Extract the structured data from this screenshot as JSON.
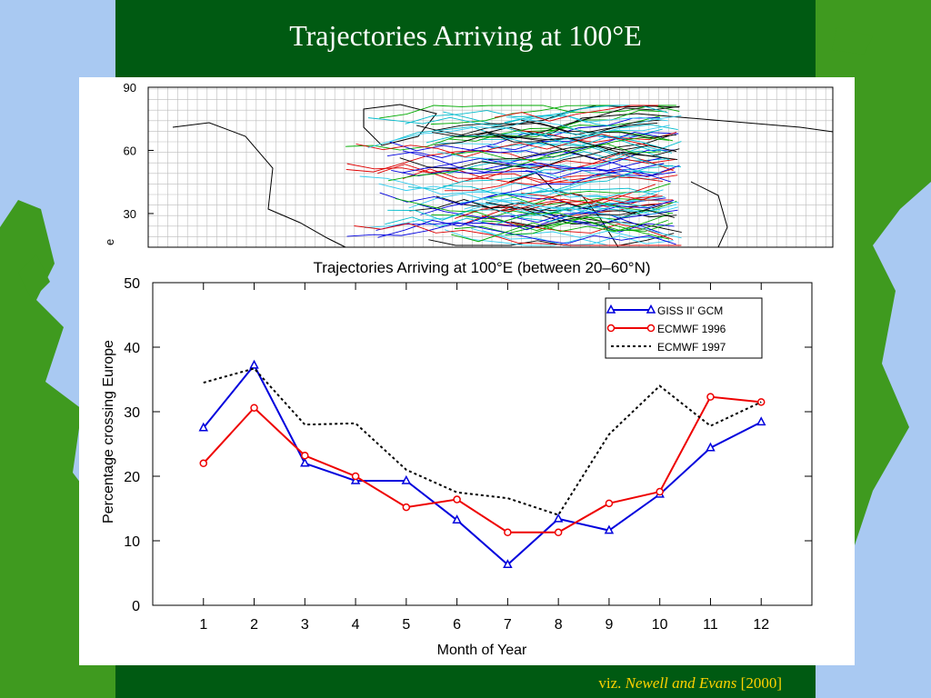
{
  "slide": {
    "title": "Trajectories Arriving at 100°E",
    "footer": {
      "prefix": "viz.",
      "authors": "Newell and Evans",
      "year": "[2000]"
    }
  },
  "map": {
    "ylim": [
      14,
      90
    ],
    "yticks": [
      90,
      60,
      30
    ],
    "ylabel": "e"
  },
  "chart_data": {
    "type": "line",
    "title": "Trajectories Arriving at 100°E (between 20–60°N)",
    "x_label": "Month of Year",
    "y_label": "Percentage crossing Europe",
    "x": [
      1,
      2,
      3,
      4,
      5,
      6,
      7,
      8,
      9,
      10,
      11,
      12
    ],
    "xlim": [
      0,
      13
    ],
    "xticks": [
      1,
      2,
      3,
      4,
      5,
      6,
      7,
      8,
      9,
      10,
      11,
      12
    ],
    "ylim": [
      0,
      50
    ],
    "yticks": [
      0,
      10,
      20,
      30,
      40,
      50
    ],
    "grid": false,
    "legend": "upper right",
    "series": [
      {
        "name": "GISS II' GCM",
        "color": "#0000dd",
        "marker": "triangle",
        "dash": false,
        "values": [
          27.5,
          37.2,
          22,
          19.3,
          19.3,
          13.2,
          6.3,
          13.4,
          11.6,
          17.2,
          24.4,
          28.4
        ]
      },
      {
        "name": "ECMWF 1996",
        "color": "#ee0000",
        "marker": "circle",
        "dash": false,
        "values": [
          22,
          30.6,
          23.2,
          20,
          15.2,
          16.4,
          11.3,
          11.3,
          15.8,
          17.6,
          32.3,
          31.5
        ]
      },
      {
        "name": "ECMWF 1997",
        "color": "#000000",
        "marker": "none",
        "dash": true,
        "values": [
          34.5,
          36.7,
          28,
          28.2,
          21,
          17.5,
          16.6,
          14,
          26.5,
          34,
          27.8,
          31.5
        ]
      }
    ]
  }
}
